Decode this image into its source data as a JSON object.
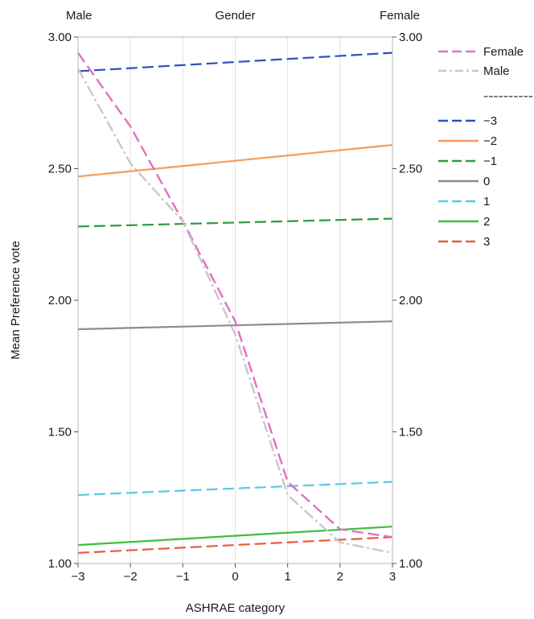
{
  "chart_data": {
    "type": "line",
    "title": "",
    "xlabel": "ASHRAE category",
    "ylabel": "Mean Preference vote",
    "top_axis": {
      "title": "Gender",
      "left_label": "Male",
      "right_label": "Female"
    },
    "x_ticks": [
      "−3",
      "−2",
      "−1",
      "0",
      "1",
      "2",
      "3"
    ],
    "y_ticks": [
      "1.00",
      "1.50",
      "2.00",
      "2.50",
      "3.00"
    ],
    "xlim": [
      -3,
      3
    ],
    "ylim": [
      1.0,
      3.0
    ],
    "grid": "vertical",
    "legend_position": "right",
    "legend_separator": "----------",
    "series": [
      {
        "name": "Female",
        "axis": "ashrae",
        "color": "#e070c0",
        "dash": "dashed",
        "x": [
          -3,
          -2,
          -1,
          0,
          1,
          2,
          3
        ],
        "values": [
          2.94,
          2.66,
          2.3,
          1.92,
          1.31,
          1.13,
          1.1
        ]
      },
      {
        "name": "Male",
        "axis": "ashrae",
        "color": "#c8c8c8",
        "dash": "dashdot",
        "x": [
          -3,
          -2,
          -1,
          0,
          1,
          2,
          3
        ],
        "values": [
          2.88,
          2.52,
          2.3,
          1.87,
          1.26,
          1.08,
          1.04
        ]
      },
      {
        "name": "−3",
        "axis": "gender",
        "color": "#2f4fbf",
        "dash": "dashed",
        "x": [
          -3,
          3
        ],
        "values": [
          2.87,
          2.94
        ]
      },
      {
        "name": "−2",
        "axis": "gender",
        "color": "#f59b5a",
        "dash": "solid",
        "x": [
          -3,
          3
        ],
        "values": [
          2.47,
          2.59
        ]
      },
      {
        "name": "−1",
        "axis": "gender",
        "color": "#2f9a3e",
        "dash": "dashed",
        "x": [
          -3,
          3
        ],
        "values": [
          2.28,
          2.31
        ]
      },
      {
        "name": "0",
        "axis": "gender",
        "color": "#8c8c8c",
        "dash": "solid",
        "x": [
          -3,
          3
        ],
        "values": [
          1.89,
          1.92
        ]
      },
      {
        "name": "1",
        "axis": "gender",
        "color": "#5ac8e8",
        "dash": "dashed",
        "x": [
          -3,
          3
        ],
        "values": [
          1.26,
          1.31
        ]
      },
      {
        "name": "2",
        "axis": "gender",
        "color": "#3cbf3c",
        "dash": "solid",
        "x": [
          -3,
          3
        ],
        "values": [
          1.07,
          1.14
        ]
      },
      {
        "name": "3",
        "axis": "gender",
        "color": "#e85a3c",
        "dash": "dashed",
        "x": [
          -3,
          3
        ],
        "values": [
          1.04,
          1.1
        ]
      }
    ]
  }
}
